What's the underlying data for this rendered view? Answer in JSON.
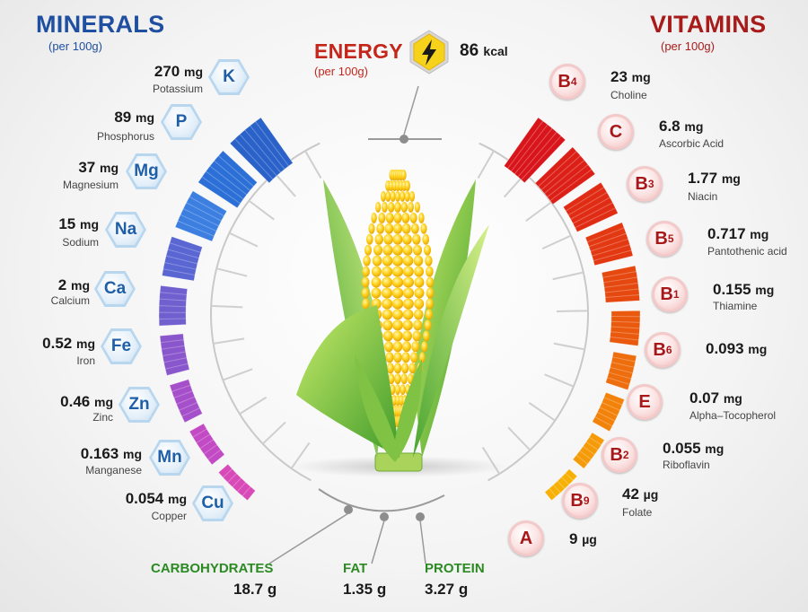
{
  "minerals": {
    "title": "MINERALS",
    "subtitle": "(per 100g)",
    "items": [
      {
        "symbol": "K",
        "amount": "270",
        "unit": "mg",
        "name": "Potassium"
      },
      {
        "symbol": "P",
        "amount": "89",
        "unit": "mg",
        "name": "Phosphorus"
      },
      {
        "symbol": "Mg",
        "amount": "37",
        "unit": "mg",
        "name": "Magnesium"
      },
      {
        "symbol": "Na",
        "amount": "15",
        "unit": "mg",
        "name": "Sodium"
      },
      {
        "symbol": "Ca",
        "amount": "2",
        "unit": "mg",
        "name": "Calcium"
      },
      {
        "symbol": "Fe",
        "amount": "0.52",
        "unit": "mg",
        "name": "Iron"
      },
      {
        "symbol": "Zn",
        "amount": "0.46",
        "unit": "mg",
        "name": "Zinc"
      },
      {
        "symbol": "Mn",
        "amount": "0.163",
        "unit": "mg",
        "name": "Manganese"
      },
      {
        "symbol": "Cu",
        "amount": "0.054",
        "unit": "mg",
        "name": "Copper"
      }
    ],
    "colors": [
      "#2a62c9",
      "#2c6fd6",
      "#3c7fe0",
      "#5a67d3",
      "#6f5fcf",
      "#8a56cc",
      "#a64fca",
      "#c24ac4",
      "#d84ab8"
    ]
  },
  "vitamins": {
    "title": "VITAMINS",
    "subtitle": "(per 100g)",
    "items": [
      {
        "symbol": "B",
        "sub": "4",
        "amount": "23",
        "unit": "mg",
        "name": "Choline"
      },
      {
        "symbol": "C",
        "sub": "",
        "amount": "6.8",
        "unit": "mg",
        "name": "Ascorbic Acid"
      },
      {
        "symbol": "B",
        "sub": "3",
        "amount": "1.77",
        "unit": "mg",
        "name": "Niacin"
      },
      {
        "symbol": "B",
        "sub": "5",
        "amount": "0.717",
        "unit": "mg",
        "name": "Pantothenic acid"
      },
      {
        "symbol": "B",
        "sub": "1",
        "amount": "0.155",
        "unit": "mg",
        "name": "Thiamine"
      },
      {
        "symbol": "B",
        "sub": "6",
        "amount": "0.093",
        "unit": "mg",
        "name": ""
      },
      {
        "symbol": "E",
        "sub": "",
        "amount": "0.07",
        "unit": "mg",
        "name": "Alpha–Tocopherol"
      },
      {
        "symbol": "B",
        "sub": "2",
        "amount": "0.055",
        "unit": "mg",
        "name": "Riboflavin"
      },
      {
        "symbol": "B",
        "sub": "9",
        "amount": "42",
        "unit": "µg",
        "name": "Folate"
      },
      {
        "symbol": "A",
        "sub": "",
        "amount": "9",
        "unit": "µg",
        "name": ""
      }
    ],
    "colors": [
      "#d8151b",
      "#dc2018",
      "#e02c14",
      "#e33912",
      "#e64910",
      "#ea5a0e",
      "#ee6d0c",
      "#f2820a",
      "#f59a08",
      "#f7b006"
    ]
  },
  "energy": {
    "title": "ENERGY",
    "subtitle": "(per 100g)",
    "amount": "86",
    "unit": "kcal",
    "icon": "lightning-icon"
  },
  "macros": [
    {
      "name": "CARBOHYDRATES",
      "amount": "18.7",
      "unit": "g"
    },
    {
      "name": "FAT",
      "amount": "1.35",
      "unit": "g"
    },
    {
      "name": "PROTEIN",
      "amount": "3.27",
      "unit": "g"
    }
  ],
  "colors": {
    "minerals_title": "#1f4fa0",
    "vitamins_title": "#a81b1b",
    "energy_title": "#c4261c",
    "macro_label": "#2b8a22",
    "mineral_symbol": "#1f5fa8",
    "vitamin_symbol": "#a8181b"
  }
}
